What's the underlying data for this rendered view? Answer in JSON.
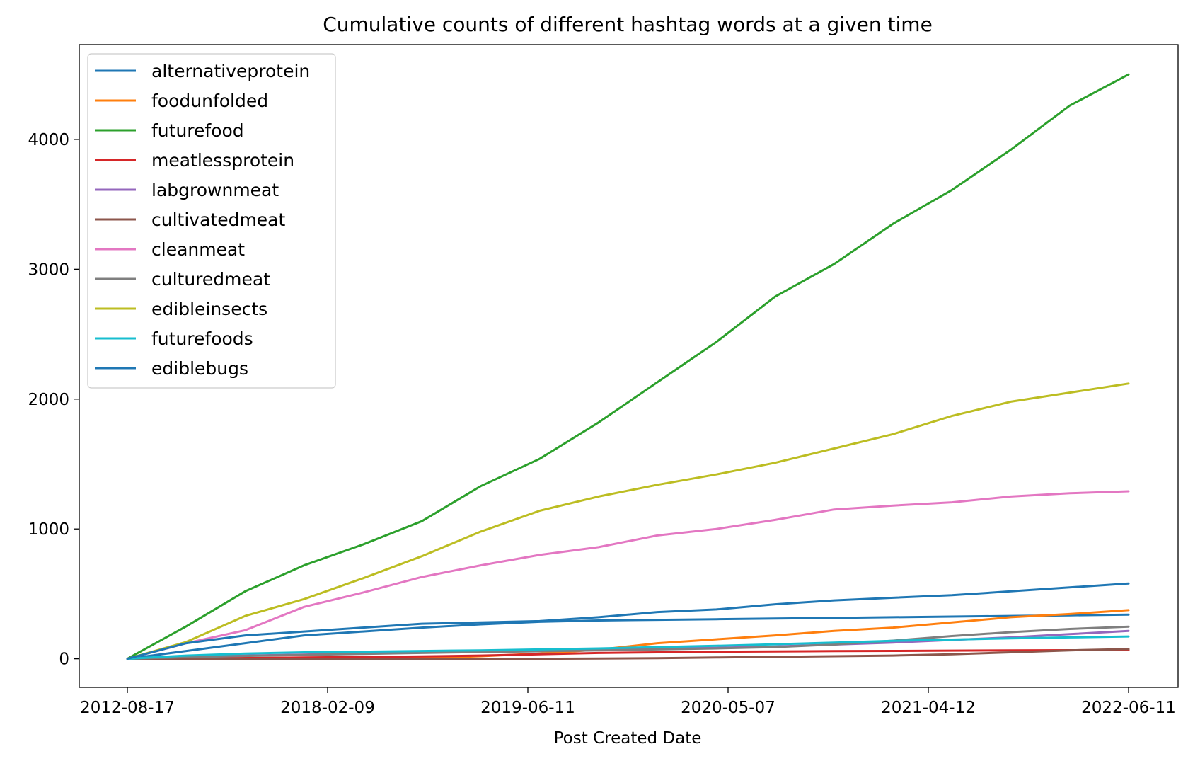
{
  "chart_data": {
    "type": "line",
    "title": "Cumulative counts of different hashtag words at a given time",
    "xlabel": "Post Created Date",
    "ylabel": "",
    "x_tick_labels": [
      "2012-08-17",
      "2018-02-09",
      "2019-06-11",
      "2020-05-07",
      "2021-04-12",
      "2022-06-11"
    ],
    "y_ticks": [
      0,
      1000,
      2000,
      3000,
      4000
    ],
    "ylim": [
      -220,
      4730
    ],
    "legend_position": "upper-left",
    "grid": false,
    "series": [
      {
        "name": "alternativeprotein",
        "color": "#1f77b4",
        "values": [
          0,
          60,
          120,
          180,
          210,
          240,
          265,
          285,
          295,
          300,
          305,
          310,
          315,
          320,
          325,
          330,
          335,
          340
        ]
      },
      {
        "name": "foodunfolded",
        "color": "#ff7f0e",
        "values": [
          0,
          0,
          0,
          0,
          0,
          5,
          20,
          40,
          70,
          120,
          150,
          180,
          215,
          240,
          280,
          320,
          345,
          375
        ]
      },
      {
        "name": "futurefood",
        "color": "#2ca02c",
        "values": [
          0,
          250,
          520,
          720,
          880,
          1060,
          1330,
          1540,
          1820,
          2130,
          2440,
          2790,
          3040,
          3350,
          3610,
          3920,
          4260,
          4500
        ]
      },
      {
        "name": "meatlessprotein",
        "color": "#d62728",
        "values": [
          0,
          3,
          6,
          10,
          14,
          18,
          25,
          35,
          45,
          50,
          54,
          57,
          59,
          61,
          63,
          65,
          66,
          68
        ]
      },
      {
        "name": "labgrownmeat",
        "color": "#9467bd",
        "values": [
          0,
          15,
          25,
          33,
          40,
          48,
          55,
          62,
          70,
          78,
          85,
          95,
          110,
          125,
          145,
          165,
          190,
          215
        ]
      },
      {
        "name": "cultivatedmeat",
        "color": "#8c564b",
        "values": [
          0,
          0,
          0,
          0,
          0,
          0,
          0,
          0,
          2,
          5,
          10,
          15,
          20,
          25,
          35,
          50,
          65,
          75
        ]
      },
      {
        "name": "cleanmeat",
        "color": "#e377c2",
        "values": [
          0,
          120,
          220,
          400,
          510,
          630,
          720,
          800,
          860,
          950,
          1000,
          1070,
          1150,
          1180,
          1205,
          1250,
          1275,
          1290
        ]
      },
      {
        "name": "culturedmeat",
        "color": "#7f7f7f",
        "values": [
          0,
          12,
          22,
          30,
          38,
          45,
          52,
          58,
          65,
          72,
          80,
          90,
          110,
          140,
          175,
          205,
          230,
          248
        ]
      },
      {
        "name": "edibleinsects",
        "color": "#bcbd22",
        "values": [
          0,
          130,
          330,
          460,
          620,
          790,
          980,
          1140,
          1250,
          1340,
          1420,
          1510,
          1620,
          1730,
          1870,
          1980,
          2050,
          2120
        ]
      },
      {
        "name": "futurefoods",
        "color": "#17becf",
        "values": [
          0,
          25,
          40,
          50,
          55,
          60,
          65,
          72,
          80,
          90,
          100,
          112,
          125,
          138,
          148,
          158,
          165,
          172
        ]
      },
      {
        "name": "ediblebugs",
        "color": "#1f77b4",
        "values": [
          0,
          120,
          180,
          210,
          240,
          270,
          280,
          290,
          320,
          360,
          380,
          420,
          450,
          470,
          490,
          520,
          550,
          580
        ]
      }
    ]
  }
}
